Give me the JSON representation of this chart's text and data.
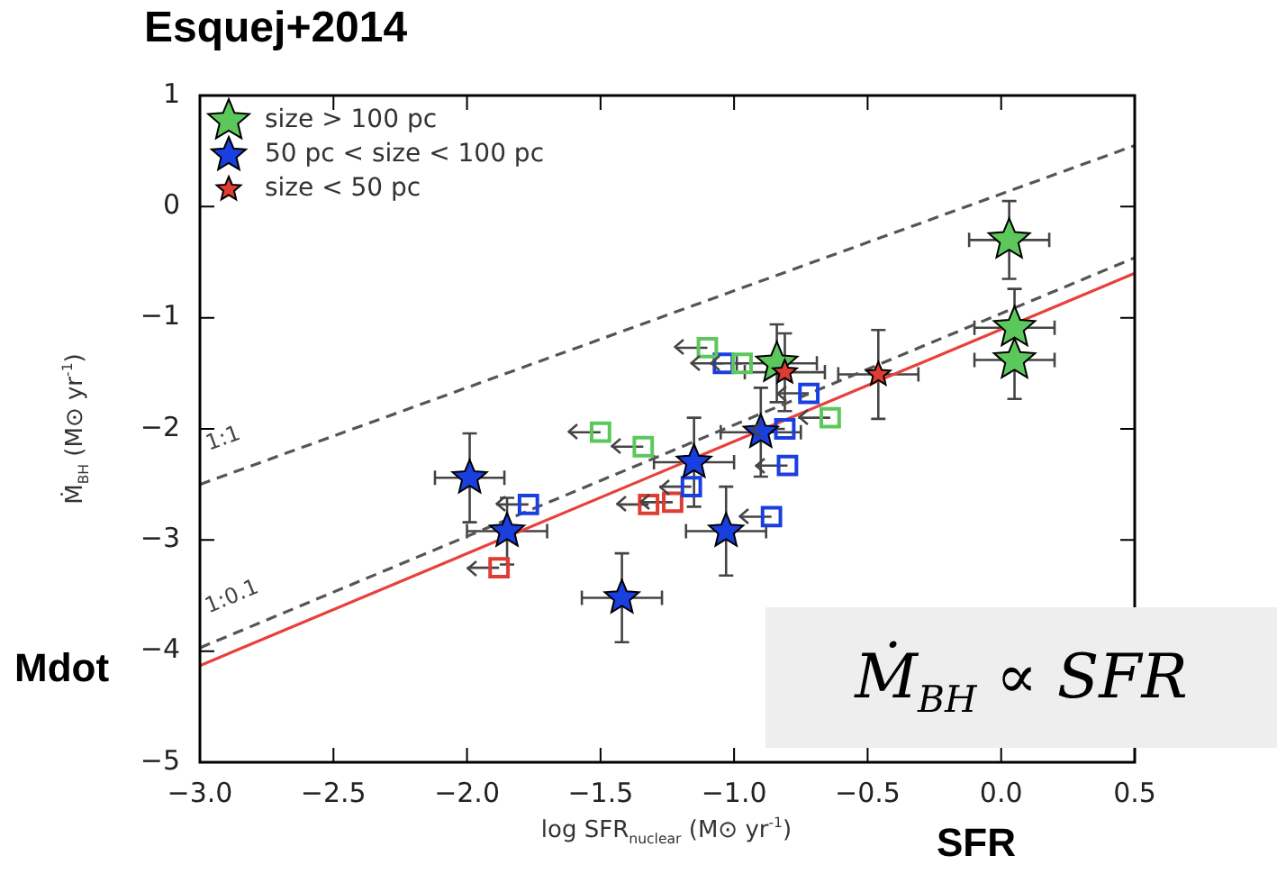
{
  "chart_data": {
    "type": "scatter",
    "title": "Esquej+2014",
    "xlabel": "log SFR$_{nuclear}$ (M⊙ yr$^{-1}$)",
    "ylabel": "Ṁ$_{BH}$ (M⊙ yr$^{-1}$)",
    "annotations": [
      "Mdot",
      "SFR",
      "Ṁ$_{BH}$ ∝ SFR"
    ],
    "xlim": [
      -3,
      0.5
    ],
    "ylim": [
      -5,
      1
    ],
    "xticks": [
      {
        "value": -3,
        "label": "−3.0"
      },
      {
        "value": -2.5,
        "label": "−2.5"
      },
      {
        "value": -2,
        "label": "−2.0"
      },
      {
        "value": -1.5,
        "label": "−1.5"
      },
      {
        "value": -1,
        "label": "−1.0"
      },
      {
        "value": -0.5,
        "label": "−0.5"
      },
      {
        "value": 0,
        "label": "0.0"
      },
      {
        "value": 0.5,
        "label": "0.5"
      }
    ],
    "yticks": [
      {
        "value": -5,
        "label": "−5"
      },
      {
        "value": -4,
        "label": "−4"
      },
      {
        "value": -3,
        "label": "−3"
      },
      {
        "value": -2,
        "label": "−2"
      },
      {
        "value": -1,
        "label": "−1"
      },
      0,
      1
    ],
    "legend": "top left",
    "series": [
      {
        "name": "size > 100 pc",
        "color": "#5cc85c",
        "marker": "star",
        "x": [
          -0.84,
          0.03,
          0.05,
          0.05
        ],
        "values": [
          -1.41,
          -0.3,
          -1.09,
          -1.38
        ],
        "errors": [
          0.35,
          0.35,
          0.35,
          0.35
        ],
        "xerrors": [
          0.15,
          0.15,
          0.15,
          0.15
        ]
      },
      {
        "name": "50 pc < size < 100 pc",
        "color": "#1a3fe0",
        "marker": "star",
        "x": [
          -1.99,
          -1.85,
          -1.42,
          -1.15,
          -1.03,
          -0.9
        ],
        "values": [
          -2.44,
          -2.92,
          -3.52,
          -2.3,
          -2.92,
          -2.03
        ],
        "errors": [
          0.4,
          0.3,
          0.4,
          0.4,
          0.4,
          0.4
        ],
        "xerrors": [
          0.13,
          0.15,
          0.15,
          0.15,
          0.15,
          0.15
        ]
      },
      {
        "name": "size < 50 pc",
        "color": "#e03c32",
        "marker": "star",
        "x": [
          -0.81,
          -0.46
        ],
        "values": [
          -1.49,
          -1.51
        ],
        "errors": [
          0.35,
          0.4
        ],
        "xerrors": [
          0.15,
          0.15
        ]
      },
      {
        "color": "#5cc85c",
        "marker": "square",
        "x": [
          -1.1,
          -0.97,
          -0.64,
          -1.5,
          -1.34
        ],
        "values": [
          -1.27,
          -1.41,
          -1.9,
          -2.03,
          -2.16
        ],
        "xerrors": [
          [
            -1.22,
            -1.1
          ],
          [
            -1.09,
            -0.97
          ],
          [
            -0.76,
            -0.64
          ],
          [
            -1.62,
            -1.5
          ],
          [
            -1.46,
            -1.34
          ]
        ]
      },
      {
        "color": "#1a3fe0",
        "marker": "square",
        "x": [
          -1.04,
          -0.72,
          -0.81,
          -0.8,
          -1.16,
          -1.77,
          -0.86
        ],
        "values": [
          -1.41,
          -1.68,
          -2.0,
          -2.33,
          -2.52,
          -2.68,
          -2.79
        ],
        "xerrors": [
          [
            -1.16,
            -1.04
          ],
          [
            -0.84,
            -0.72
          ],
          [
            -0.93,
            -0.81
          ],
          [
            -0.92,
            -0.8
          ],
          [
            -1.28,
            -1.16
          ],
          [
            -1.89,
            -1.77
          ],
          [
            -0.98,
            -0.86
          ]
        ]
      },
      {
        "color": "#e03c32",
        "marker": "square",
        "x": [
          -1.32,
          -1.23,
          -1.88
        ],
        "values": [
          -2.68,
          -2.66,
          -3.25
        ],
        "xerrors": [
          [
            -1.44,
            -1.32
          ],
          [
            -1.35,
            -1.23
          ],
          [
            -2.0,
            -1.88
          ]
        ]
      },
      {
        "type": "line",
        "name": "1:1",
        "color": "#555555",
        "line_style": "dashed",
        "marker": "none",
        "x": [
          -3,
          0.5
        ],
        "values": [
          -2.5,
          0.55
        ]
      },
      {
        "type": "line",
        "name": "1:0.1",
        "color": "#555555",
        "line_style": "dashed",
        "marker": "none",
        "x": [
          -3,
          0.5
        ],
        "values": [
          -3.97,
          -0.46
        ]
      },
      {
        "type": "line",
        "color": "#e8413c",
        "line_style": "solid",
        "marker": "none",
        "x": [
          -3,
          0.5
        ],
        "values": [
          -4.13,
          -0.6
        ]
      }
    ]
  }
}
